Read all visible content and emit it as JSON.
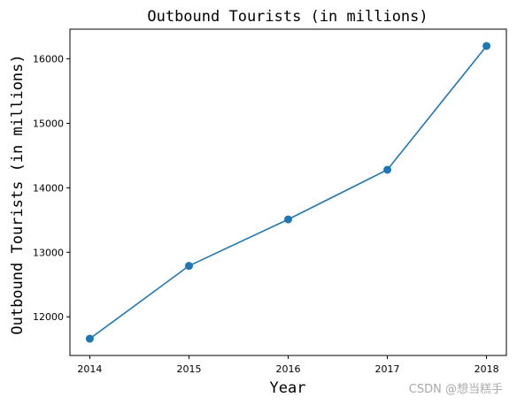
{
  "chart_data": {
    "type": "line",
    "title": "Outbound Tourists (in millions)",
    "xlabel": "Year",
    "ylabel": "Outbound Tourists (in millions)",
    "x": [
      2014,
      2015,
      2016,
      2017,
      2018
    ],
    "x_tick_labels": [
      "2014",
      "2015",
      "2016",
      "2017",
      "2018"
    ],
    "series": [
      {
        "values": [
          11660,
          12790,
          13510,
          14280,
          16200
        ]
      }
    ],
    "yticks": [
      12000,
      13000,
      14000,
      15000,
      16000
    ],
    "y_tick_labels": [
      "12000",
      "13000",
      "14000",
      "15000",
      "16000"
    ],
    "ylim": [
      11400,
      16460
    ],
    "xlim": [
      2013.8,
      2018.2
    ],
    "grid": false,
    "line_color": "#1f77b4",
    "marker": "circle"
  },
  "watermark": "CSDN @想当糕手"
}
